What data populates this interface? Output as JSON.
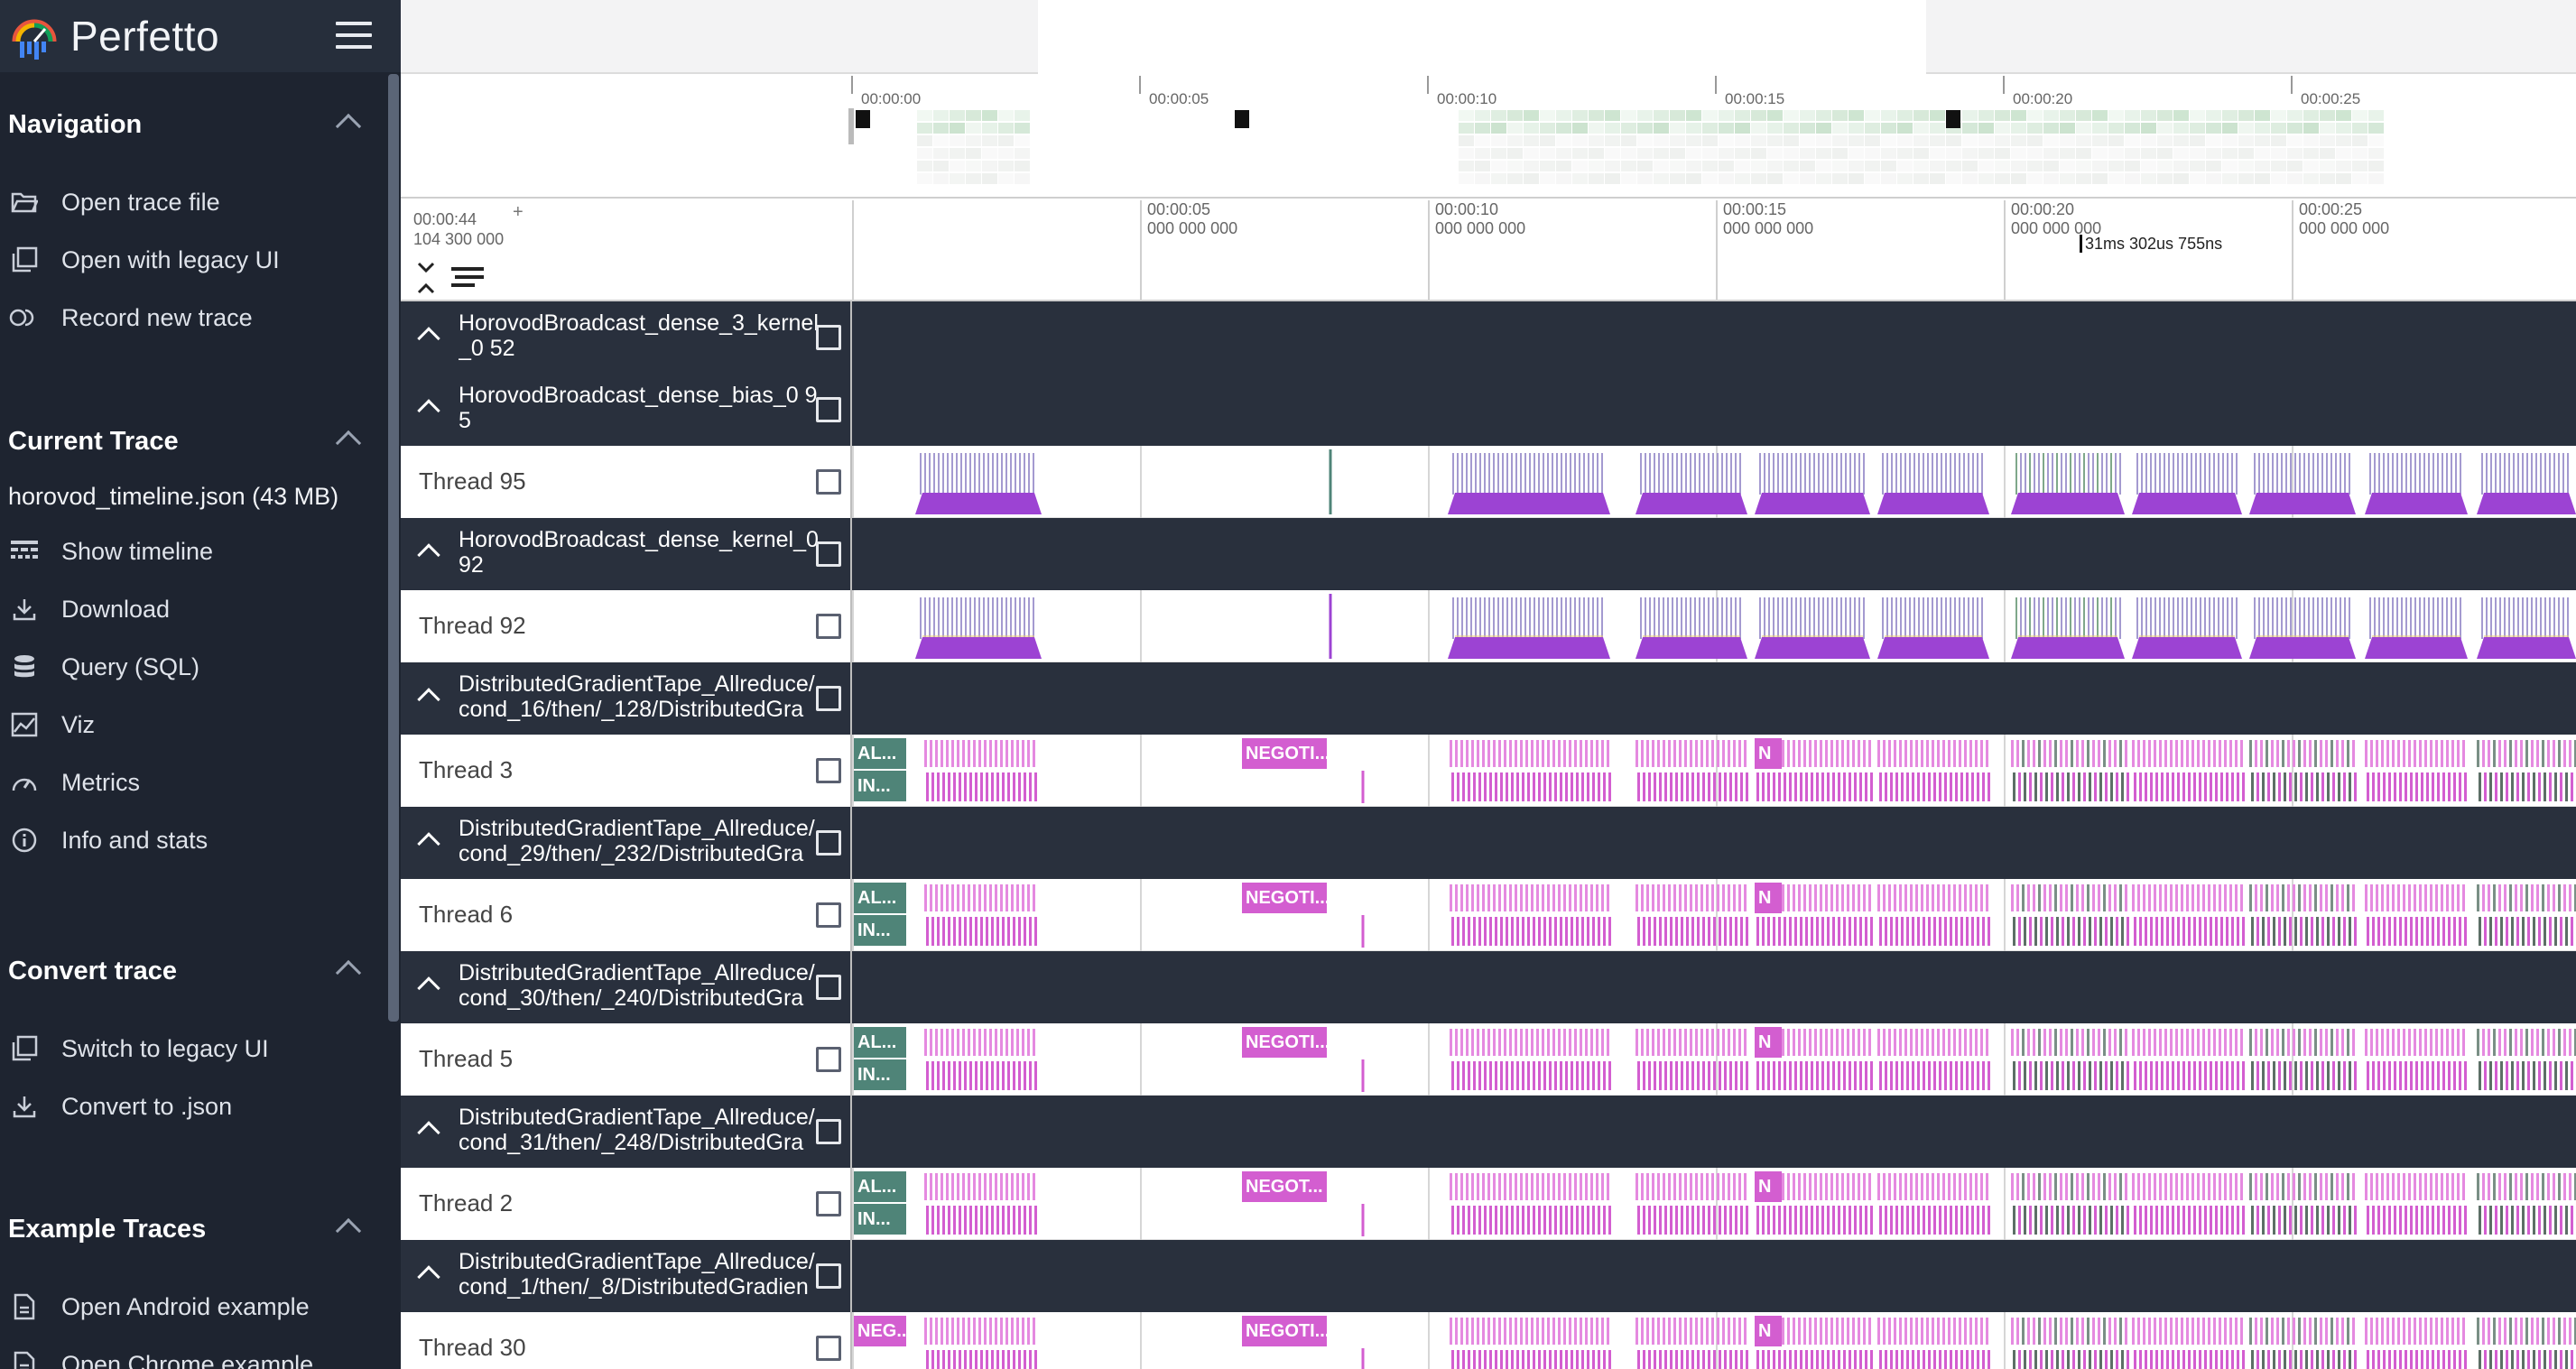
{
  "app": {
    "name": "Perfetto"
  },
  "colors": {
    "sidebar_bg": "#1e2430",
    "group_bg": "#29303d",
    "counter_purple": "#9c43d3",
    "slice_pink": "#d35ed0",
    "slice_teal": "#4f8478"
  },
  "sidebar": {
    "navigation": {
      "title": "Navigation",
      "items": [
        {
          "label": "Open trace file",
          "icon": "folder-open-icon"
        },
        {
          "label": "Open with legacy UI",
          "icon": "filter-none-icon"
        },
        {
          "label": "Record new trace",
          "icon": "record-icon"
        }
      ]
    },
    "current_trace": {
      "title": "Current Trace",
      "trace_name": "horovod_timeline.json (43 MB)",
      "items": [
        {
          "label": "Show timeline",
          "icon": "timeline-icon"
        },
        {
          "label": "Download",
          "icon": "download-icon"
        },
        {
          "label": "Query (SQL)",
          "icon": "database-icon"
        },
        {
          "label": "Viz",
          "icon": "chart-icon"
        },
        {
          "label": "Metrics",
          "icon": "speed-icon"
        },
        {
          "label": "Info and stats",
          "icon": "info-icon"
        }
      ]
    },
    "convert_trace": {
      "title": "Convert trace",
      "items": [
        {
          "label": "Switch to legacy UI",
          "icon": "filter-none-icon"
        },
        {
          "label": "Convert to .json",
          "icon": "download-icon"
        }
      ]
    },
    "example_traces": {
      "title": "Example Traces",
      "items": [
        {
          "label": "Open Android example",
          "icon": "description-icon"
        },
        {
          "label": "Open Chrome example",
          "icon": "description-icon"
        }
      ]
    }
  },
  "overview": {
    "ticks": [
      "00:00:00",
      "00:00:05",
      "00:00:10",
      "00:00:15",
      "00:00:20",
      "00:00:25"
    ]
  },
  "ruler": {
    "offset_line1": "00:00:44",
    "offset_line2": "104 300 000",
    "plus": "+",
    "ticks": [
      {
        "l1": "00:00:05",
        "l2": "000 000 000"
      },
      {
        "l1": "00:00:10",
        "l2": "000 000 000"
      },
      {
        "l1": "00:00:15",
        "l2": "000 000 000"
      },
      {
        "l1": "00:00:20",
        "l2": "000 000 000"
      },
      {
        "l1": "00:00:25",
        "l2": "000 000 000"
      }
    ],
    "cursor_label": "31ms 302us 755ns"
  },
  "tracks": [
    {
      "kind": "group",
      "title": "HorovodBroadcast_dense_3_kernel_0 52"
    },
    {
      "kind": "group",
      "title": "HorovodBroadcast_dense_bias_0 95"
    },
    {
      "kind": "thread",
      "name": "Thread 95",
      "style": "counter"
    },
    {
      "kind": "group",
      "title": "HorovodBroadcast_dense_kernel_0 92"
    },
    {
      "kind": "thread",
      "name": "Thread 92",
      "style": "counter2"
    },
    {
      "kind": "group",
      "title": "DistributedGradientTape_Allreduce/cond_16/then/_128/DistributedGra"
    },
    {
      "kind": "thread",
      "name": "Thread 3",
      "style": "slices",
      "a": "AL...",
      "b": "IN...",
      "neg": "NEGOTI...",
      "n": "N"
    },
    {
      "kind": "group",
      "title": "DistributedGradientTape_Allreduce/cond_29/then/_232/DistributedGra"
    },
    {
      "kind": "thread",
      "name": "Thread 6",
      "style": "slices",
      "a": "AL...",
      "b": "IN...",
      "neg": "NEGOTI...",
      "n": "N"
    },
    {
      "kind": "group",
      "title": "DistributedGradientTape_Allreduce/cond_30/then/_240/DistributedGra"
    },
    {
      "kind": "thread",
      "name": "Thread 5",
      "style": "slices",
      "a": "AL...",
      "b": "IN...",
      "neg": "NEGOTI...",
      "n": "N"
    },
    {
      "kind": "group",
      "title": "DistributedGradientTape_Allreduce/cond_31/then/_248/DistributedGra"
    },
    {
      "kind": "thread",
      "name": "Thread 2",
      "style": "slices",
      "a": "AL...",
      "b": "IN...",
      "neg": "NEGOT...",
      "n": "N"
    },
    {
      "kind": "group",
      "title": "DistributedGradientTape_Allreduce/cond_1/then/_8/DistributedGradien"
    },
    {
      "kind": "thread",
      "name": "Thread 30",
      "style": "slices",
      "a": "NEG...",
      "b": "",
      "neg": "NEGOTI...",
      "n": "N"
    }
  ]
}
